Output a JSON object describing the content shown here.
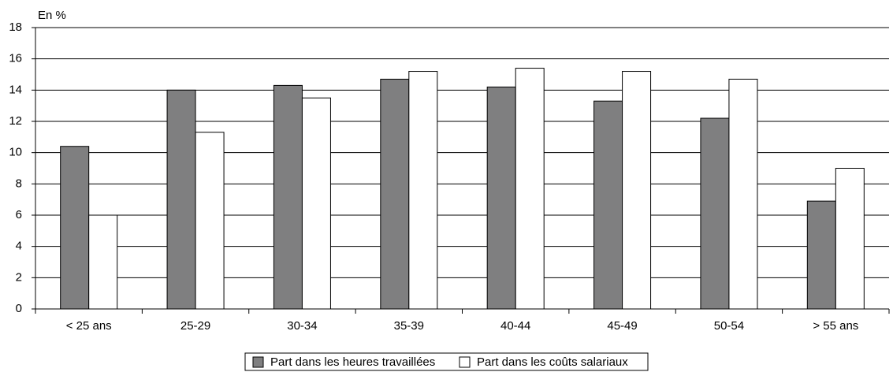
{
  "chart_data": {
    "type": "bar",
    "y_label": "En %",
    "categories": [
      "< 25 ans",
      "25-29",
      "30-34",
      "35-39",
      "40-44",
      "45-49",
      "50-54",
      "> 55 ans"
    ],
    "series": [
      {
        "name": "Part dans les heures travaillées",
        "color": "#7f7f80",
        "values": [
          10.4,
          14.0,
          14.3,
          14.7,
          14.2,
          13.3,
          12.2,
          6.9
        ]
      },
      {
        "name": "Part dans les coûts salariaux",
        "color": "#ffffff",
        "values": [
          6.0,
          11.3,
          13.5,
          15.2,
          15.4,
          15.2,
          14.7,
          9.0
        ]
      }
    ],
    "ylim": [
      0,
      18
    ],
    "yticks": [
      0,
      2,
      4,
      6,
      8,
      10,
      12,
      14,
      16,
      18
    ],
    "grid": true,
    "legend": "bottom"
  }
}
